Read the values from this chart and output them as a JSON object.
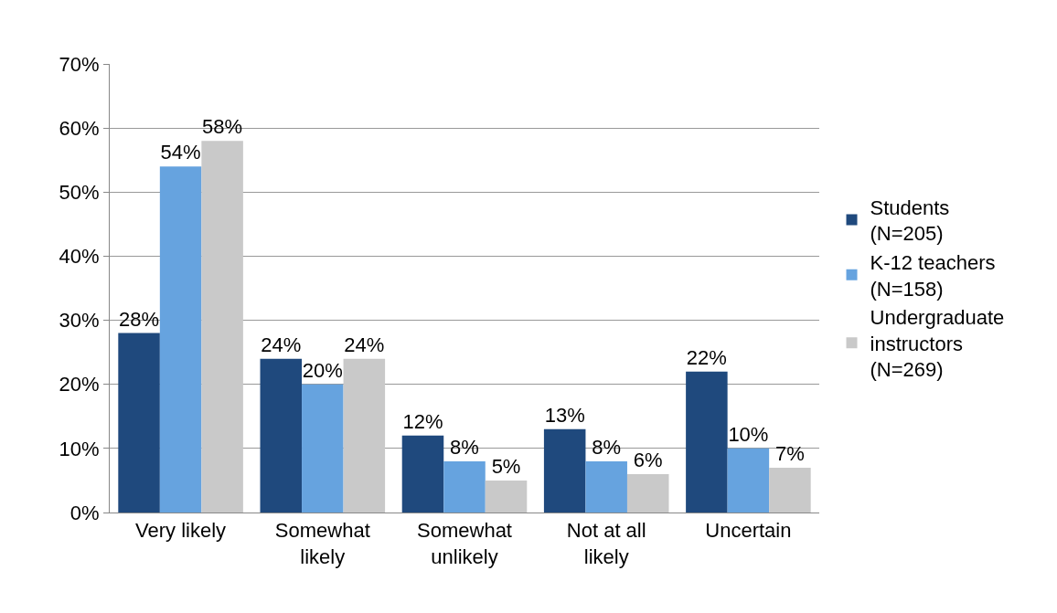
{
  "chart_data": {
    "type": "bar",
    "categories": [
      "Very likely",
      "Somewhat likely",
      "Somewhat unlikely",
      "Not at all likely",
      "Uncertain"
    ],
    "series": [
      {
        "name": "Students (N=205)",
        "color": "#1f497d",
        "values": [
          28,
          24,
          12,
          13,
          22
        ],
        "value_labels": [
          "28%",
          "24%",
          "12%",
          "13%",
          "22%"
        ]
      },
      {
        "name": "K-12 teachers (N=158)",
        "color": "#66a3df",
        "values": [
          54,
          20,
          8,
          8,
          10
        ],
        "value_labels": [
          "54%",
          "20%",
          "8%",
          "8%",
          "10%"
        ]
      },
      {
        "name": "Undergraduate instructors (N=269)",
        "color": "#c9c9c9",
        "values": [
          58,
          24,
          5,
          6,
          7
        ],
        "value_labels": [
          "58%",
          "24%",
          "5%",
          "6%",
          "7%"
        ]
      }
    ],
    "ylim": [
      0,
      70
    ],
    "yticks": [
      {
        "value": 0,
        "label": "0%"
      },
      {
        "value": 10,
        "label": "10%"
      },
      {
        "value": 20,
        "label": "20%"
      },
      {
        "value": 30,
        "label": "30%"
      },
      {
        "value": 40,
        "label": "40%"
      },
      {
        "value": 50,
        "label": "50%"
      },
      {
        "value": 60,
        "label": "60%"
      },
      {
        "value": 70,
        "label": "70%"
      }
    ],
    "grid": "y",
    "legend": "right"
  }
}
